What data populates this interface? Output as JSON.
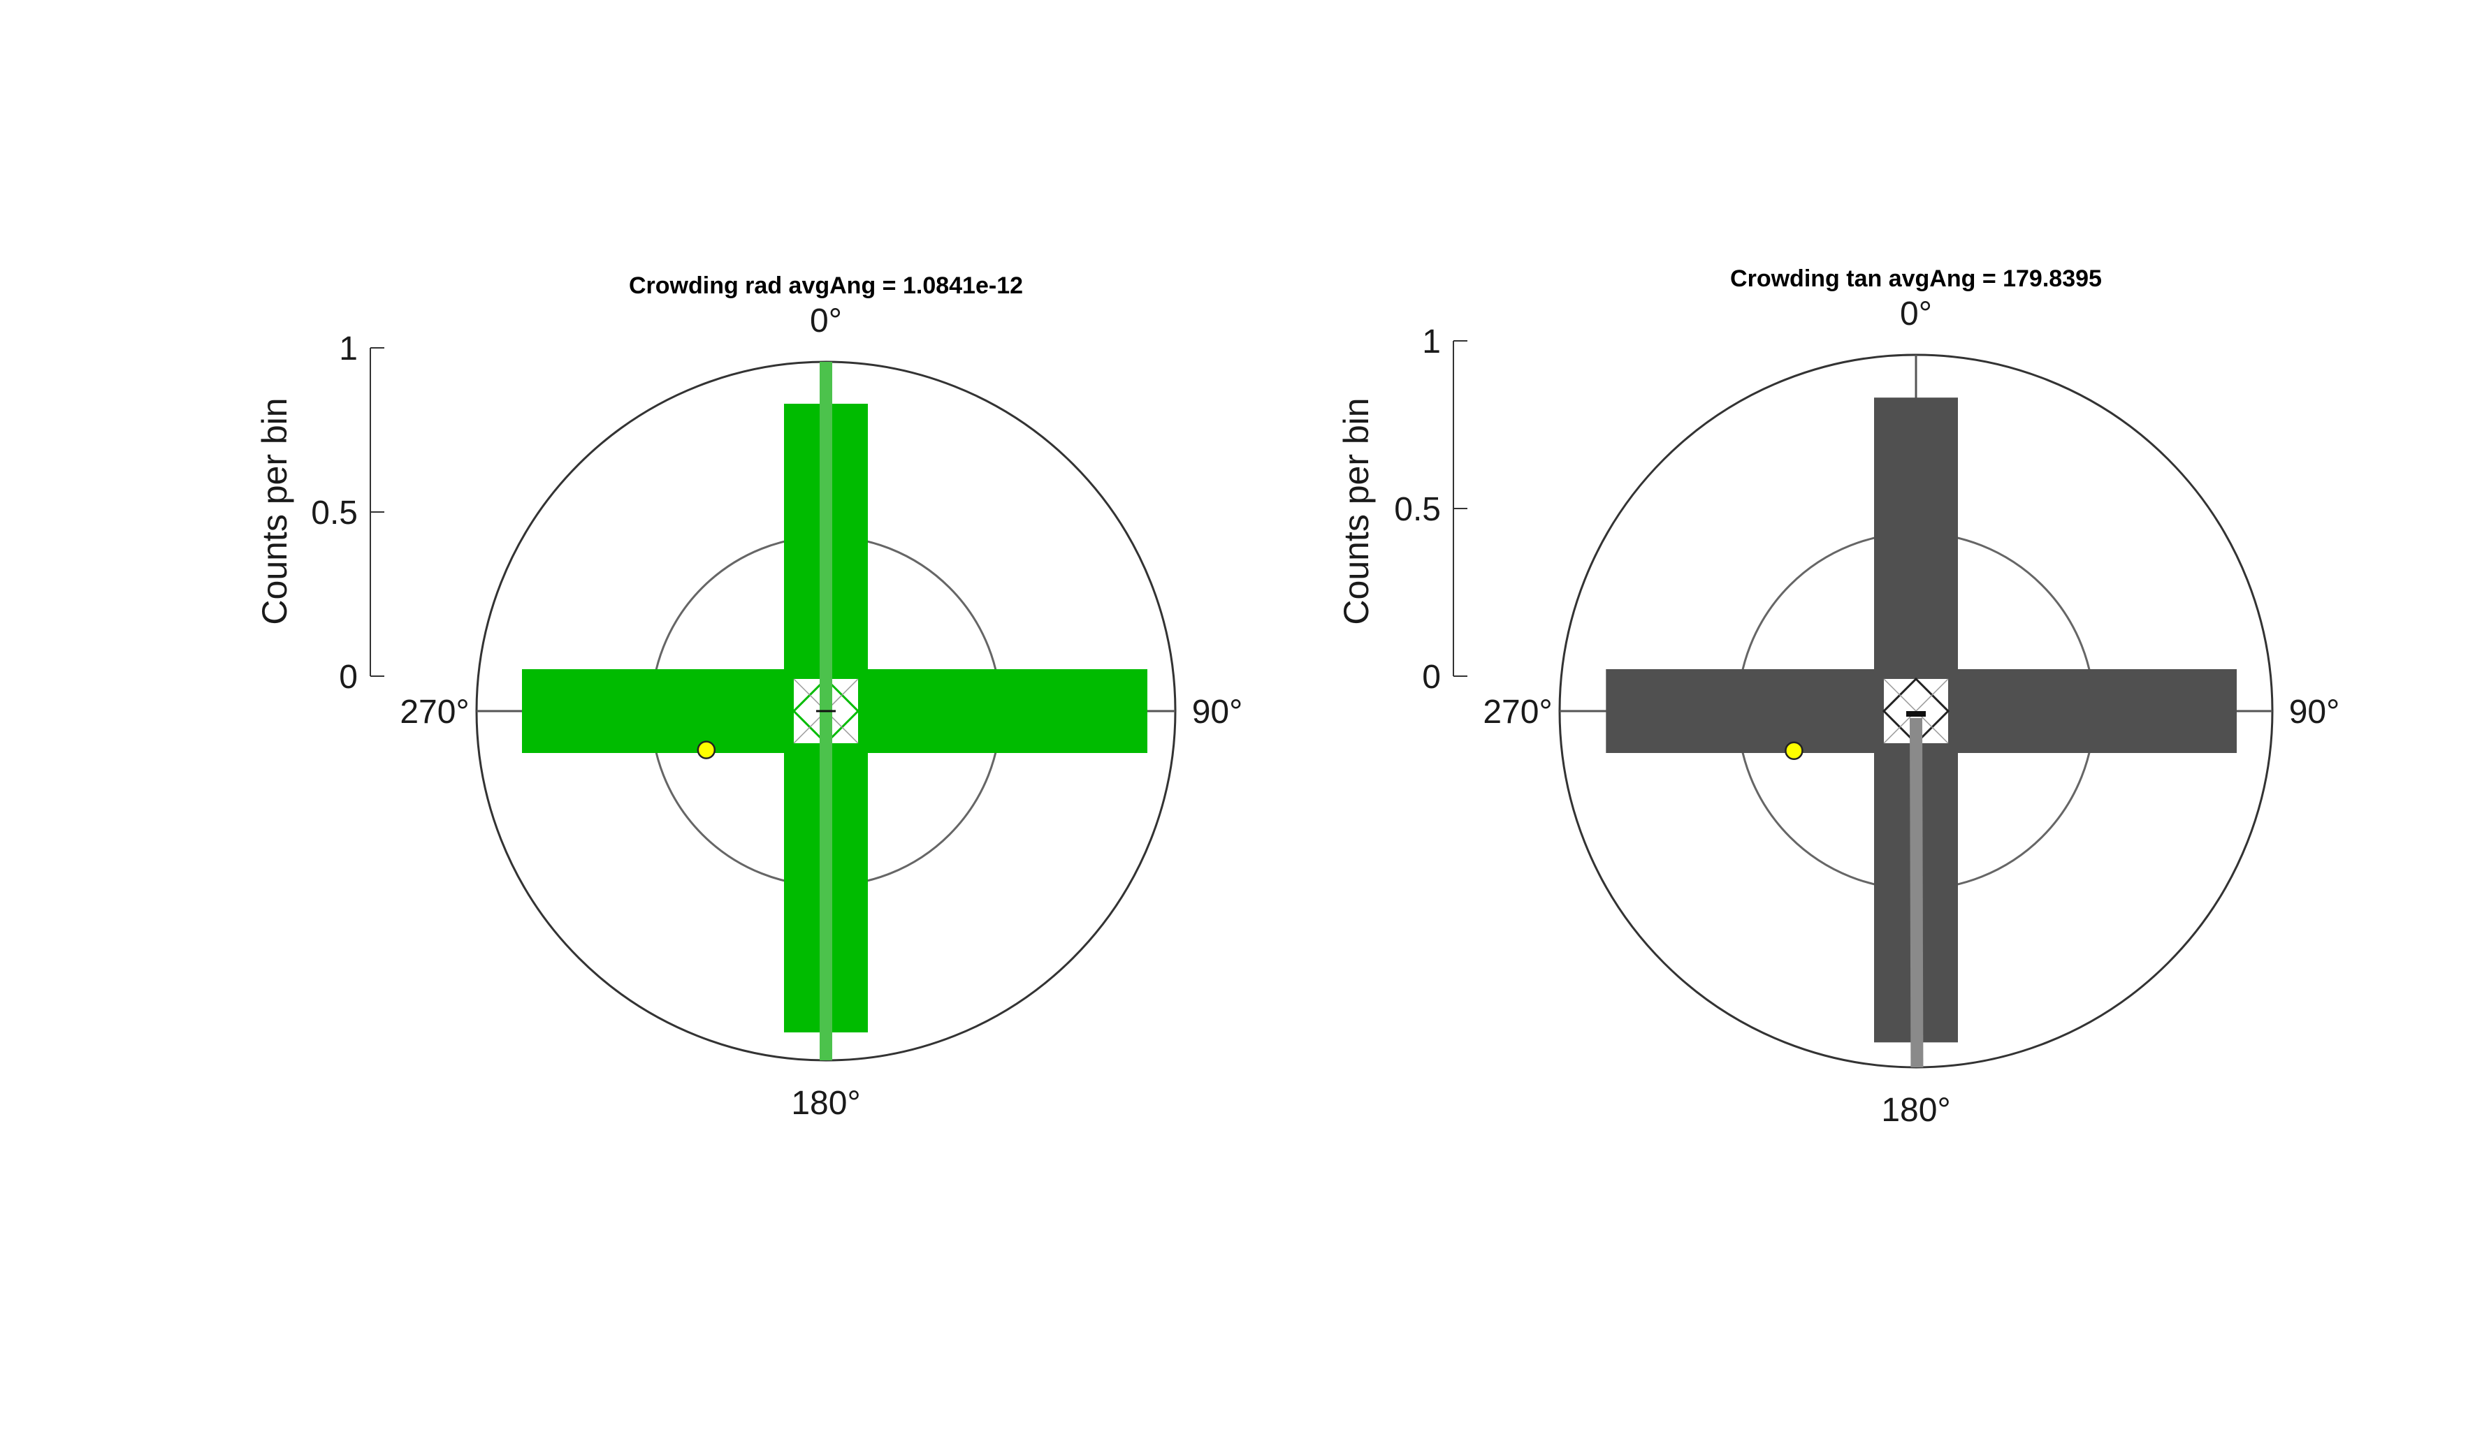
{
  "chart_data": [
    {
      "type": "polar-histogram",
      "title": "Crowding rad avgAng = 1.0841e-12",
      "rlabel": "Counts per bin",
      "rlim": [
        0,
        1
      ],
      "rticks": [
        "0",
        "0.5",
        "1"
      ],
      "theta_ticks": [
        {
          "angle": 0,
          "label": "0°"
        },
        {
          "angle": 90,
          "label": "90°"
        },
        {
          "angle": 180,
          "label": "180°"
        },
        {
          "angle": 270,
          "label": "270°"
        }
      ],
      "theta_zero": "top",
      "theta_direction": "clockwise",
      "bar_color": "#00bb00",
      "bins": [
        {
          "angle": 0,
          "count": 0.88
        },
        {
          "angle": 90,
          "count": 0.92
        },
        {
          "angle": 180,
          "count": 0.92
        },
        {
          "angle": 270,
          "count": 0.87
        }
      ],
      "mean_line": {
        "angle_deg": 0,
        "color": "#4cc24c",
        "extends_both_sides": true
      },
      "marker": {
        "angle_deg": 252,
        "r": 0.36,
        "color": "#ffff00"
      }
    },
    {
      "type": "polar-histogram",
      "title": "Crowding tan avgAng = 179.8395",
      "rlabel": "Counts per bin",
      "rlim": [
        0,
        1
      ],
      "rticks": [
        "0",
        "0.5",
        "1"
      ],
      "theta_ticks": [
        {
          "angle": 0,
          "label": "0°"
        },
        {
          "angle": 90,
          "label": "90°"
        },
        {
          "angle": 180,
          "label": "180°"
        },
        {
          "angle": 270,
          "label": "270°"
        }
      ],
      "theta_zero": "top",
      "theta_direction": "clockwise",
      "bar_color": "#505050",
      "bins": [
        {
          "angle": 0,
          "count": 0.88
        },
        {
          "angle": 90,
          "count": 0.9
        },
        {
          "angle": 180,
          "count": 0.93
        },
        {
          "angle": 270,
          "count": 0.87
        }
      ],
      "mean_line": {
        "angle_deg": 179.8395,
        "color": "#8a8a8a",
        "extends_both_sides": false
      },
      "marker": {
        "angle_deg": 252,
        "r": 0.36,
        "color": "#ffff00"
      }
    }
  ]
}
